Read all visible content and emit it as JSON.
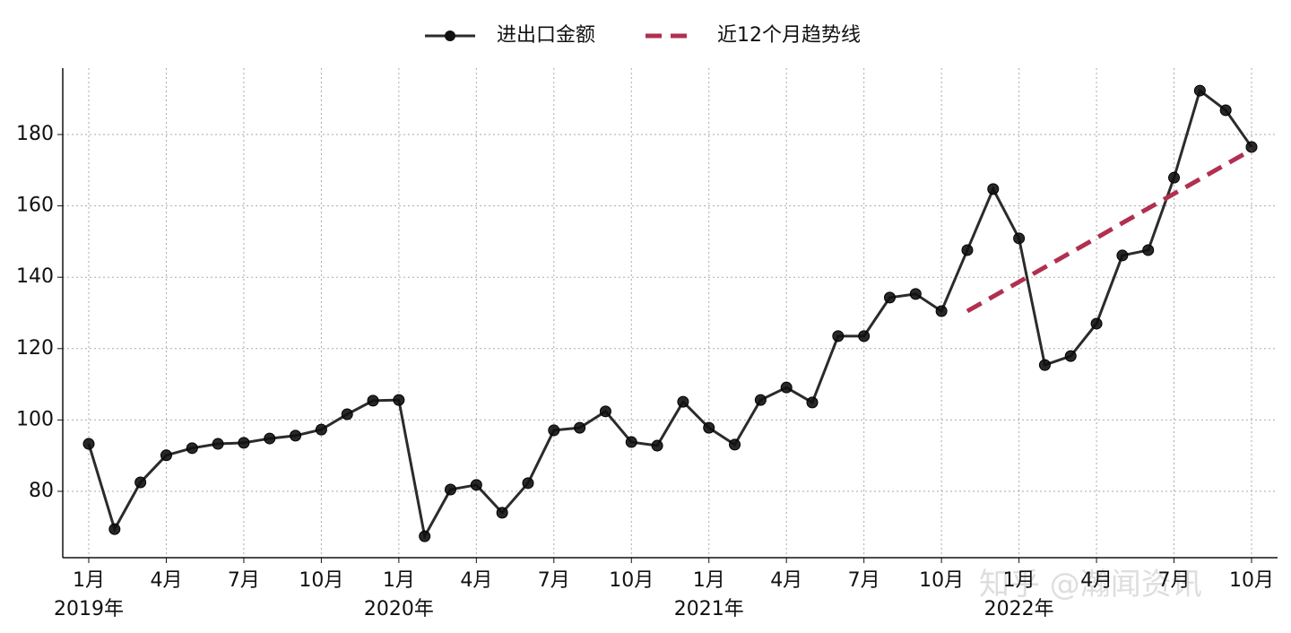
{
  "chart_data": {
    "type": "line",
    "categories": [
      "1月\n2019年",
      null,
      null,
      "4月",
      null,
      null,
      "7月",
      null,
      null,
      "10月",
      null,
      null,
      "1月\n2020年",
      null,
      null,
      "4月",
      null,
      null,
      "7月",
      null,
      null,
      "10月",
      null,
      null,
      "1月\n2021年",
      null,
      null,
      "4月",
      null,
      null,
      "7月",
      null,
      null,
      "10月",
      null,
      null,
      "1月\n2022年",
      null,
      null,
      "4月",
      null,
      null,
      "7月",
      null,
      null,
      "10月"
    ],
    "series": [
      {
        "name": "进出口金额",
        "color": "#2b2b2b",
        "marker": true,
        "dashed": false,
        "values": [
          93.3,
          69.4,
          82.5,
          90.1,
          92.1,
          93.3,
          93.6,
          94.8,
          95.6,
          97.3,
          101.6,
          105.4,
          105.6,
          67.4,
          80.5,
          81.8,
          74.0,
          82.3,
          97.1,
          97.8,
          102.4,
          93.8,
          92.8,
          105.1,
          97.8,
          93.1,
          105.6,
          109.1,
          104.9,
          123.5,
          123.5,
          134.3,
          135.3,
          130.5,
          147.6,
          164.7,
          150.9,
          115.4,
          117.9,
          127.0,
          146.1,
          147.6,
          167.9,
          192.3,
          186.8,
          176.5
        ]
      },
      {
        "name": "近12个月趋势线",
        "color": "#b03050",
        "marker": false,
        "dashed": true,
        "values": [
          null,
          null,
          null,
          null,
          null,
          null,
          null,
          null,
          null,
          null,
          null,
          null,
          null,
          null,
          null,
          null,
          null,
          null,
          null,
          null,
          null,
          null,
          null,
          null,
          null,
          null,
          null,
          null,
          null,
          null,
          null,
          null,
          null,
          null,
          130.5,
          134.6,
          138.7,
          142.8,
          146.9,
          151.0,
          155.2,
          159.3,
          163.4,
          167.5,
          171.6,
          175.7
        ]
      }
    ],
    "ylim": [
      61.4,
      198.6
    ],
    "yticks": [
      80,
      100,
      120,
      140,
      160,
      180
    ],
    "grid": true,
    "legend": "top",
    "watermark": "知乎 @瀚闻资讯"
  }
}
